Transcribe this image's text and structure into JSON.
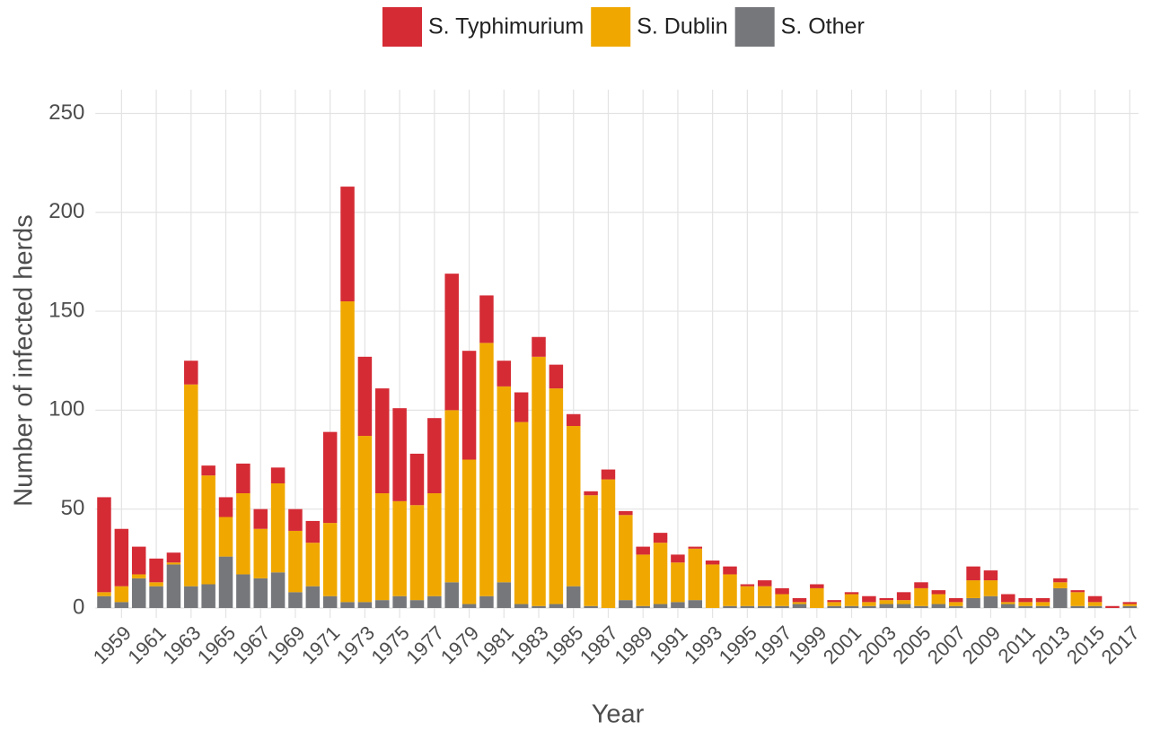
{
  "chart_data": {
    "type": "stacked_bar",
    "x_label": "Year",
    "y_label": "Number of infected herds",
    "categories": [
      null,
      "1959",
      null,
      "1961",
      null,
      "1963",
      null,
      "1965",
      null,
      "1967",
      null,
      "1969",
      null,
      "1971",
      null,
      "1973",
      null,
      "1975",
      null,
      "1977",
      null,
      "1979",
      null,
      "1981",
      null,
      "1983",
      null,
      "1985",
      null,
      "1987",
      null,
      "1989",
      null,
      "1991",
      null,
      "1993",
      null,
      "1995",
      null,
      "1997",
      null,
      "1999",
      null,
      "2001",
      null,
      "2003",
      null,
      "2005",
      null,
      "2007",
      null,
      "2009",
      null,
      "2011",
      null,
      "2013",
      null,
      "2015",
      null,
      "2017"
    ],
    "series": [
      {
        "name": "S. Typhimurium",
        "color": "#d52b35",
        "values": [
          48,
          29,
          14,
          12,
          5,
          12,
          5,
          10,
          15,
          10,
          8,
          11,
          11,
          46,
          58,
          40,
          53,
          47,
          26,
          38,
          69,
          55,
          24,
          13,
          15,
          10,
          12,
          6,
          2,
          5,
          2,
          4,
          5,
          4,
          1,
          2,
          4,
          1,
          3,
          3,
          2,
          2,
          1,
          1,
          3,
          1,
          4,
          3,
          2,
          2,
          7,
          5,
          4,
          2,
          2,
          2,
          1,
          3,
          1,
          1
        ]
      },
      {
        "name": "S. Dublin",
        "color": "#f0a800",
        "values": [
          2,
          8,
          2,
          2,
          1,
          102,
          55,
          20,
          41,
          25,
          45,
          31,
          22,
          37,
          152,
          84,
          54,
          48,
          48,
          52,
          87,
          73,
          128,
          99,
          92,
          126,
          109,
          81,
          56,
          65,
          43,
          26,
          31,
          20,
          26,
          22,
          16,
          10,
          10,
          6,
          1,
          10,
          2,
          6,
          2,
          2,
          2,
          9,
          5,
          2,
          9,
          8,
          1,
          2,
          2,
          3,
          7,
          2,
          0,
          1
        ]
      },
      {
        "name": "S. Other",
        "color": "#75777b",
        "values": [
          6,
          3,
          15,
          11,
          22,
          11,
          12,
          26,
          17,
          15,
          18,
          8,
          11,
          6,
          3,
          3,
          4,
          6,
          4,
          6,
          13,
          2,
          6,
          13,
          2,
          1,
          2,
          11,
          1,
          0,
          4,
          1,
          2,
          3,
          4,
          0,
          1,
          1,
          1,
          1,
          2,
          0,
          1,
          1,
          1,
          2,
          2,
          1,
          2,
          1,
          5,
          6,
          2,
          1,
          1,
          10,
          1,
          1,
          0,
          1
        ]
      }
    ],
    "ylim": [
      -5,
      262
    ],
    "yticks": [
      0,
      50,
      100,
      150,
      200,
      250
    ],
    "grid": true,
    "legend": "top"
  }
}
